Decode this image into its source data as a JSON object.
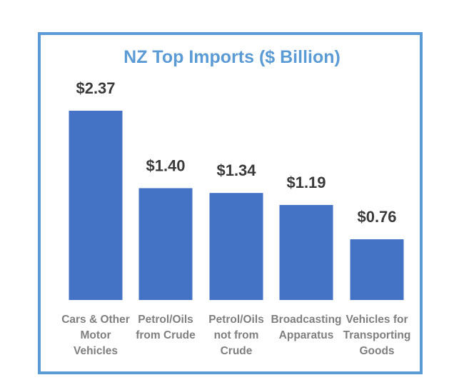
{
  "chart_data": {
    "type": "bar",
    "title": "NZ Top Imports ($ Billion)",
    "categories": [
      [
        "Cars & Other",
        "Motor",
        "Vehicles"
      ],
      [
        "Petrol/Oils",
        "from Crude"
      ],
      [
        "Petrol/Oils",
        "not from",
        "Crude"
      ],
      [
        "Broadcasting",
        "Apparatus"
      ],
      [
        "Vehicles for",
        "Transporting",
        "Goods"
      ]
    ],
    "values": [
      2.37,
      1.4,
      1.34,
      1.19,
      0.76
    ],
    "value_labels": [
      "$2.37",
      "$1.40",
      "$1.34",
      "$1.19",
      "$0.76"
    ],
    "xlabel": "",
    "ylabel": "",
    "grid": false,
    "legend": "none",
    "colors": {
      "bar": "#4472c4",
      "title": "#5b9bd5",
      "border": "#5b9bd5",
      "value_text": "#3a3a3a",
      "category_text": "#7f7f7f"
    }
  }
}
